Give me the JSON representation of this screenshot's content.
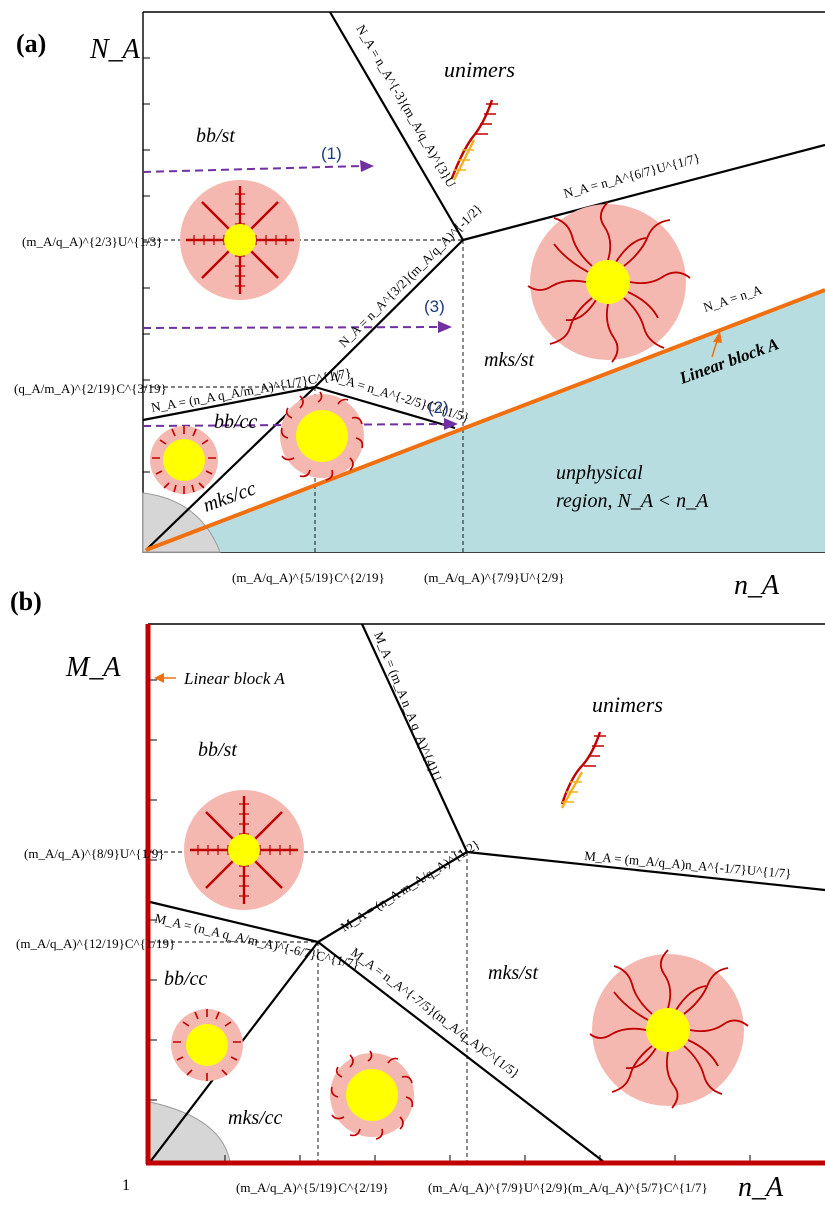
{
  "panel_a": {
    "label": "(a)",
    "y_axis": "N_A",
    "x_axis": "n_A",
    "regions": {
      "unimers": "unimers",
      "bb_st": "bb/st",
      "bb_cc": "bb/cc",
      "mks_st": "mks/st",
      "mks_cc": "mks/cc",
      "unphysical_line1": "unphysical",
      "unphysical_line2": "region, N_A < n_A"
    },
    "linear_block": "Linear block A",
    "arrows": [
      "(1)",
      "(2)",
      "(3)"
    ],
    "y_ticks": [
      "(m_A/q_A)^{2/3}U^{1/3}",
      "(q_A/m_A)^{2/19}C^{3/19}"
    ],
    "x_ticks": [
      "(m_A/q_A)^{5/19}C^{2/19}",
      "(m_A/q_A)^{7/9}U^{2/9}"
    ],
    "boundaries": {
      "unimer_bbst": "N_A = n_A^{-3}(m_A/q_A)^{3}U",
      "unimer_mksst": "N_A = n_A^{6/7}U^{1/7}",
      "bbst_mksst": "N_A = n_A^{3/2}(m_A/q_A)^{-1/2}",
      "bbst_bbcc": "N_A = (n_A q_A/m_A)^{1/7}C^{1/7}",
      "bbcc_mksst": "N_A = n_A^{-2/5}C^{1/5}",
      "linear": "N_A = n_A"
    }
  },
  "panel_b": {
    "label": "(b)",
    "y_axis": "M_A",
    "x_axis": "n_A",
    "origin": "1",
    "regions": {
      "unimers": "unimers",
      "bb_st": "bb/st",
      "bb_cc": "bb/cc",
      "mks_st": "mks/st",
      "mks_cc": "mks/cc"
    },
    "linear_block": "Linear block A",
    "y_ticks": [
      "(m_A/q_A)^{8/9}U^{1/9}",
      "(m_A/q_A)^{12/19}C^{1/19}"
    ],
    "x_ticks": [
      "(m_A/q_A)^{5/19}C^{2/19}",
      "(m_A/q_A)^{7/9}U^{2/9}",
      "(m_A/q_A)^{5/7}C^{1/7}"
    ],
    "boundaries": {
      "unimer_bbst": "M_A = (m_A n_A q_A)^{4}U",
      "unimer_mksst": "M_A = (m_A/q_A)n_A^{-1/7}U^{1/7}",
      "bbst_mksst": "M_A = (n_A m_A/q_A)^{1/2}",
      "bbst_bbcc": "M_A = (n_A q_A/m_A)^{-6/7}C^{1/7}",
      "bbcc_mksst": "M_A = n_A^{-7/5}(m_A/q_A)C^{1/5}"
    }
  },
  "colors": {
    "axis_line": "#000000",
    "unphysical_fill": "#b7dde0",
    "linear_block_a": "#f07010",
    "linear_block_b": "#c00000",
    "arrow": "#7030a0",
    "arrow_label": "#1f3a7a",
    "corona_fill": "#f4b8b0",
    "core": "#ffff00",
    "chain": "#c00000",
    "unimer_head": "#f0b020",
    "grey_region": "#d6d6d6"
  }
}
